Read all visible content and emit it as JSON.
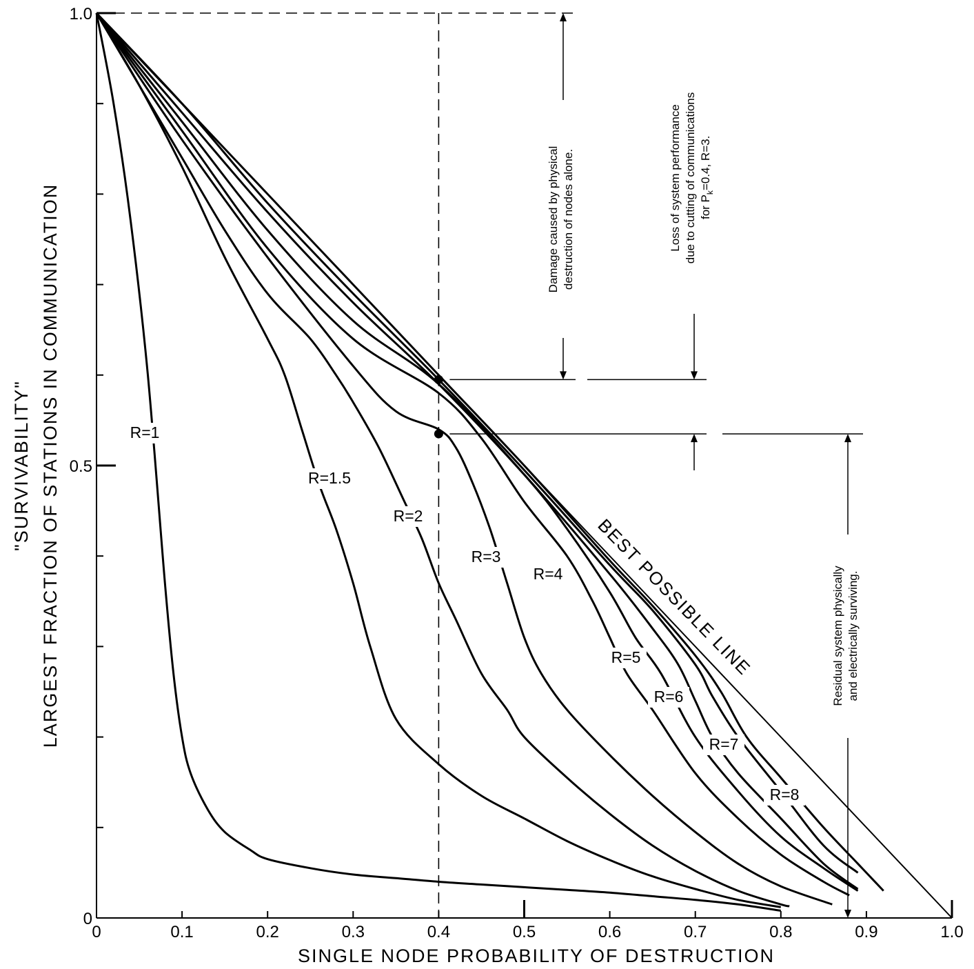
{
  "chart_data": {
    "type": "line",
    "ylabel_line1": "\"SURVIVABILITY\"",
    "ylabel_line2": "LARGEST FRACTION OF STATIONS IN COMMUNICATION",
    "xlabel": "SINGLE NODE PROBABILITY OF DESTRUCTION",
    "xlim": [
      0,
      1.0
    ],
    "ylim": [
      0,
      1.0
    ],
    "x_ticks": [
      0,
      0.1,
      0.2,
      0.3,
      0.4,
      0.5,
      0.6,
      0.7,
      0.8,
      0.9,
      1.0
    ],
    "x_tick_labels": [
      "0",
      "0.1",
      "0.2",
      "0.3",
      "0.4",
      "0.5",
      "0.6",
      "0.7",
      "0.8",
      "0.9",
      "1.0"
    ],
    "y_ticks": [
      0,
      0.1,
      0.2,
      0.3,
      0.4,
      0.5,
      0.6,
      0.7,
      0.8,
      0.9,
      1.0
    ],
    "y_tick_labels": [
      "0",
      "",
      "",
      "",
      "",
      "0.5",
      "",
      "",
      "",
      "",
      "1.0"
    ],
    "grid": false,
    "legend": "none",
    "best_line": {
      "name": "BEST POSSIBLE LINE",
      "x": [
        0,
        1.0
      ],
      "y": [
        1.0,
        0
      ]
    },
    "series": [
      {
        "name": "R=1",
        "x": [
          0,
          0.02,
          0.04,
          0.06,
          0.08,
          0.09,
          0.1,
          0.11,
          0.13,
          0.15,
          0.18,
          0.2,
          0.25,
          0.3,
          0.35,
          0.4,
          0.45,
          0.5,
          0.55,
          0.6,
          0.65,
          0.7,
          0.75,
          0.8
        ],
        "y": [
          1.0,
          0.9,
          0.77,
          0.6,
          0.37,
          0.27,
          0.2,
          0.16,
          0.12,
          0.095,
          0.075,
          0.065,
          0.055,
          0.048,
          0.044,
          0.04,
          0.037,
          0.034,
          0.031,
          0.028,
          0.024,
          0.02,
          0.015,
          0.008
        ]
      },
      {
        "name": "R=1.5",
        "x": [
          0,
          0.05,
          0.1,
          0.15,
          0.2,
          0.22,
          0.24,
          0.26,
          0.28,
          0.3,
          0.32,
          0.35,
          0.4,
          0.45,
          0.5,
          0.55,
          0.6,
          0.65,
          0.7,
          0.75,
          0.8
        ],
        "y": [
          1.0,
          0.92,
          0.83,
          0.73,
          0.64,
          0.6,
          0.54,
          0.48,
          0.43,
          0.37,
          0.3,
          0.22,
          0.17,
          0.135,
          0.11,
          0.085,
          0.064,
          0.046,
          0.032,
          0.02,
          0.012
        ]
      },
      {
        "name": "R=2",
        "x": [
          0,
          0.05,
          0.1,
          0.15,
          0.2,
          0.25,
          0.28,
          0.3,
          0.33,
          0.36,
          0.38,
          0.4,
          0.42,
          0.45,
          0.48,
          0.5,
          0.55,
          0.6,
          0.65,
          0.7,
          0.75,
          0.8,
          0.81
        ],
        "y": [
          1.0,
          0.92,
          0.84,
          0.76,
          0.69,
          0.64,
          0.6,
          0.57,
          0.52,
          0.46,
          0.42,
          0.37,
          0.33,
          0.27,
          0.23,
          0.2,
          0.155,
          0.115,
          0.08,
          0.052,
          0.03,
          0.015,
          0.013
        ]
      },
      {
        "name": "R=3",
        "x": [
          0,
          0.1,
          0.2,
          0.3,
          0.35,
          0.4,
          0.42,
          0.44,
          0.46,
          0.48,
          0.5,
          0.52,
          0.55,
          0.6,
          0.65,
          0.7,
          0.75,
          0.8,
          0.86
        ],
        "y": [
          1.0,
          0.86,
          0.73,
          0.61,
          0.56,
          0.54,
          0.52,
          0.48,
          0.43,
          0.37,
          0.31,
          0.27,
          0.23,
          0.18,
          0.135,
          0.095,
          0.06,
          0.035,
          0.015
        ]
      },
      {
        "name": "R=4",
        "x": [
          0,
          0.1,
          0.2,
          0.3,
          0.4,
          0.45,
          0.5,
          0.55,
          0.58,
          0.6,
          0.62,
          0.65,
          0.7,
          0.75,
          0.8,
          0.85,
          0.88
        ],
        "y": [
          1.0,
          0.87,
          0.74,
          0.64,
          0.58,
          0.53,
          0.46,
          0.4,
          0.35,
          0.31,
          0.27,
          0.23,
          0.16,
          0.11,
          0.07,
          0.04,
          0.025
        ]
      },
      {
        "name": "R=5",
        "x": [
          0,
          0.1,
          0.2,
          0.3,
          0.4,
          0.5,
          0.55,
          0.6,
          0.63,
          0.66,
          0.7,
          0.75,
          0.8,
          0.85,
          0.89
        ],
        "y": [
          1.0,
          0.88,
          0.76,
          0.66,
          0.59,
          0.49,
          0.43,
          0.36,
          0.31,
          0.27,
          0.2,
          0.14,
          0.09,
          0.055,
          0.03
        ]
      },
      {
        "name": "R=6",
        "x": [
          0,
          0.1,
          0.2,
          0.3,
          0.4,
          0.5,
          0.6,
          0.65,
          0.68,
          0.7,
          0.72,
          0.75,
          0.8,
          0.85,
          0.89
        ],
        "y": [
          1.0,
          0.89,
          0.78,
          0.68,
          0.59,
          0.49,
          0.38,
          0.32,
          0.28,
          0.24,
          0.2,
          0.16,
          0.11,
          0.06,
          0.032
        ]
      },
      {
        "name": "R=7",
        "x": [
          0,
          0.1,
          0.2,
          0.3,
          0.4,
          0.5,
          0.6,
          0.65,
          0.7,
          0.72,
          0.75,
          0.8,
          0.85,
          0.89
        ],
        "y": [
          1.0,
          0.9,
          0.79,
          0.69,
          0.595,
          0.495,
          0.39,
          0.34,
          0.28,
          0.245,
          0.2,
          0.14,
          0.08,
          0.05
        ]
      },
      {
        "name": "R=8",
        "x": [
          0,
          0.1,
          0.2,
          0.3,
          0.4,
          0.5,
          0.6,
          0.65,
          0.7,
          0.73,
          0.76,
          0.8,
          0.85,
          0.89,
          0.92
        ],
        "y": [
          1.0,
          0.9,
          0.8,
          0.7,
          0.6,
          0.5,
          0.395,
          0.345,
          0.29,
          0.25,
          0.2,
          0.155,
          0.1,
          0.06,
          0.03
        ]
      }
    ],
    "marked_points": [
      {
        "x": 0.4,
        "y": 0.595
      },
      {
        "x": 0.4,
        "y": 0.535
      }
    ],
    "reference_x": 0.4,
    "annotations": {
      "damage": [
        "Damage caused by physical",
        "destruction of nodes alone."
      ],
      "loss": [
        "Loss of system performance",
        "due to cutting of communications",
        "for P",
        "k",
        "=0.4, R=3."
      ],
      "residual": [
        "Residual system physically",
        "and electrically surviving."
      ]
    }
  }
}
